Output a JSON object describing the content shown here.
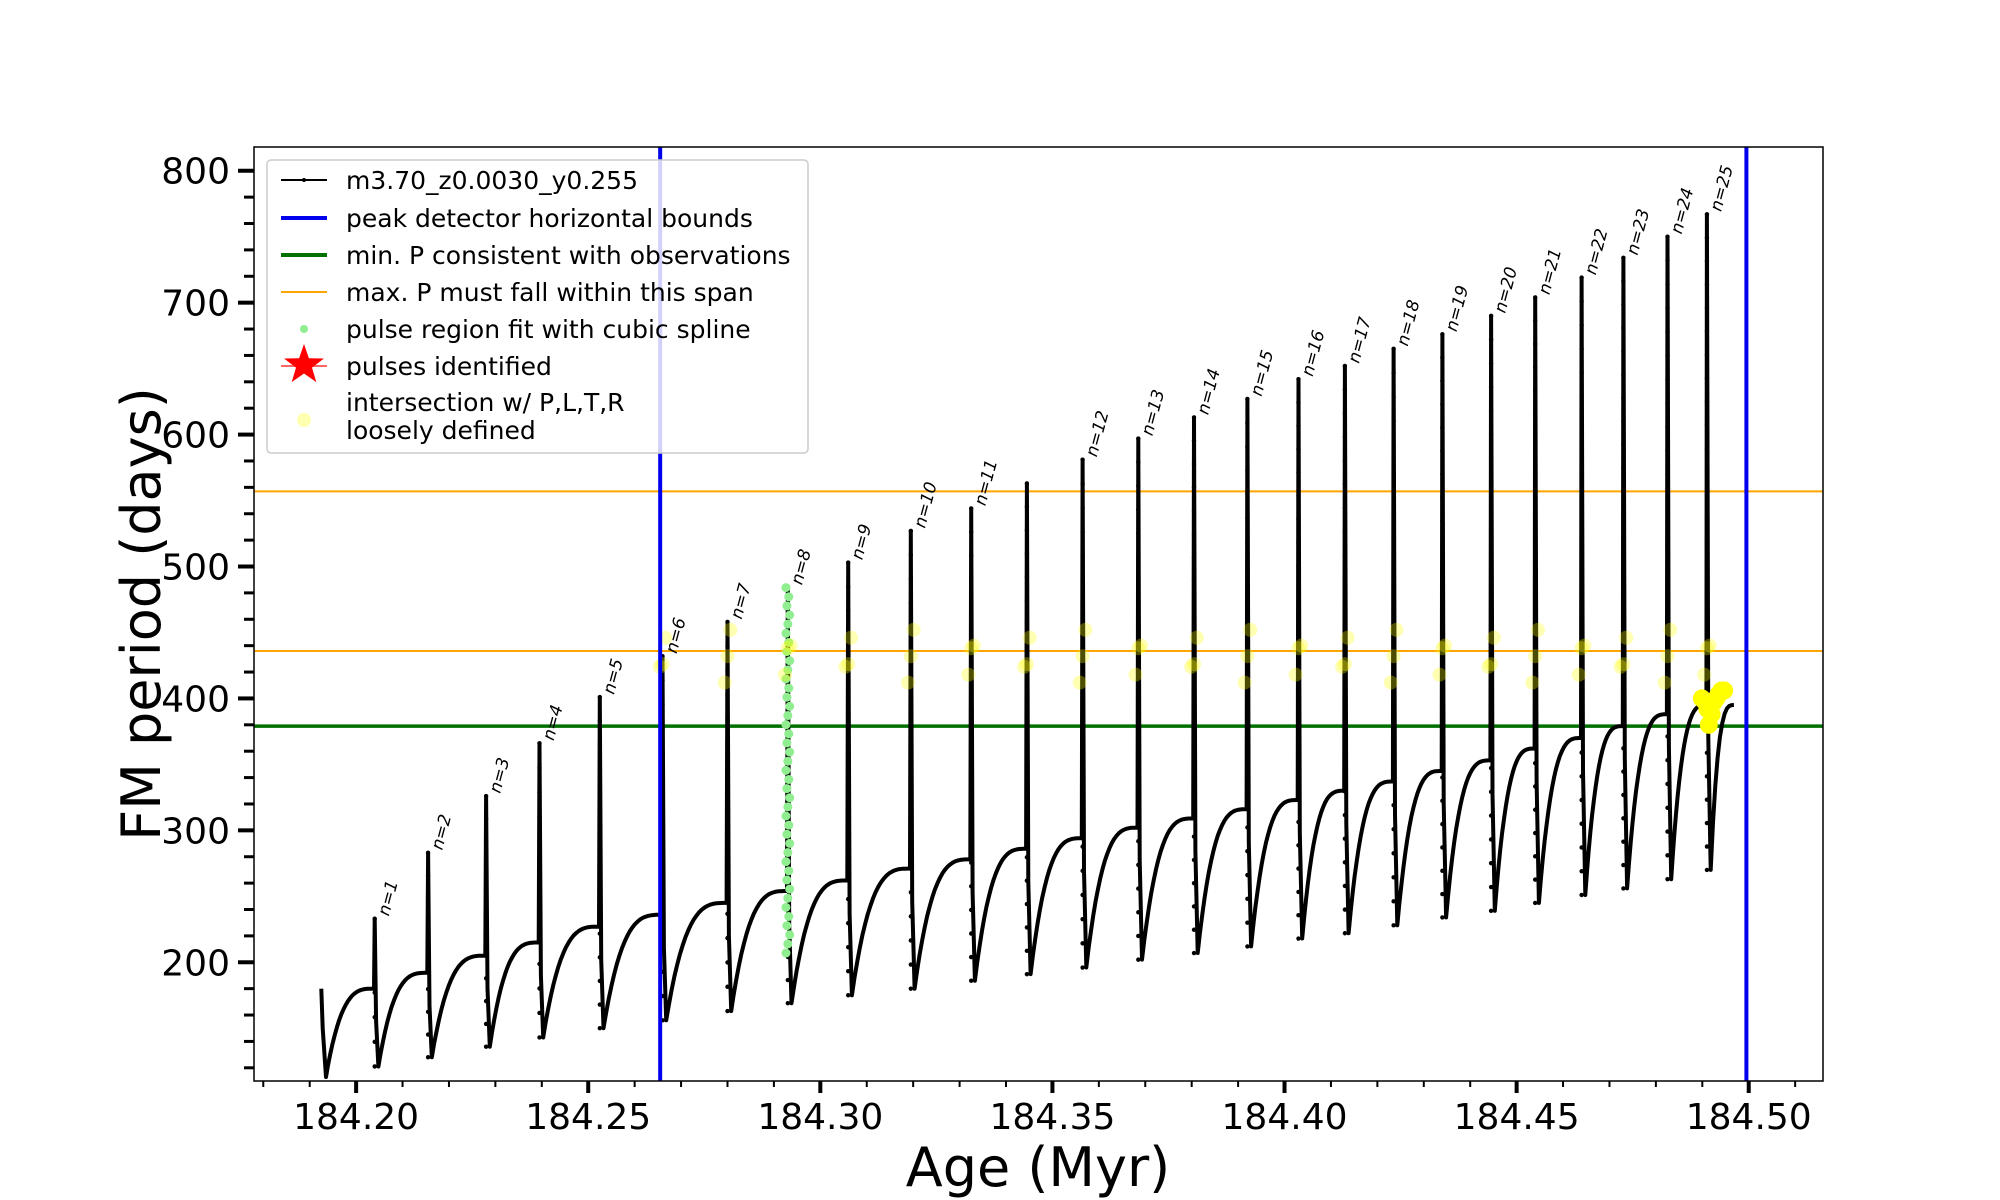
{
  "chart_data": {
    "type": "line",
    "xlabel": "Age (Myr)",
    "ylabel": "FM period (days)",
    "xlim": [
      184.178,
      184.516
    ],
    "ylim": [
      110,
      818
    ],
    "xticks": [
      {
        "value": 184.2,
        "label": "184.20"
      },
      {
        "value": 184.25,
        "label": "184.25"
      },
      {
        "value": 184.3,
        "label": "184.30"
      },
      {
        "value": 184.35,
        "label": "184.35"
      },
      {
        "value": 184.4,
        "label": "184.40"
      },
      {
        "value": 184.45,
        "label": "184.45"
      },
      {
        "value": 184.5,
        "label": "184.50"
      }
    ],
    "yticks": [
      {
        "value": 200,
        "label": "200"
      },
      {
        "value": 300,
        "label": "300"
      },
      {
        "value": 400,
        "label": "400"
      },
      {
        "value": 500,
        "label": "500"
      },
      {
        "value": 600,
        "label": "600"
      },
      {
        "value": 700,
        "label": "700"
      },
      {
        "value": 800,
        "label": "800"
      }
    ],
    "track": {
      "name": "m3.70_z0.0030_y0.255",
      "color": "#000000",
      "start": {
        "x": 184.1925,
        "y": 180
      },
      "initial_min": 113,
      "pulses": [
        {
          "x": 184.204,
          "peak": 233,
          "pre": 180,
          "min": 121,
          "label": "n=1"
        },
        {
          "x": 184.2155,
          "peak": 283,
          "pre": 192,
          "min": 128,
          "label": "n=2"
        },
        {
          "x": 184.228,
          "peak": 326,
          "pre": 205,
          "min": 136,
          "label": "n=3"
        },
        {
          "x": 184.2395,
          "peak": 366,
          "pre": 215,
          "min": 143,
          "label": "n=4"
        },
        {
          "x": 184.2525,
          "peak": 401,
          "pre": 227,
          "min": 150,
          "label": "n=5"
        },
        {
          "x": 184.266,
          "peak": 432,
          "pre": 236,
          "min": 156,
          "label": "n=6"
        },
        {
          "x": 184.28,
          "peak": 458,
          "pre": 245,
          "min": 163,
          "label": "n=7"
        },
        {
          "x": 184.293,
          "peak": 484,
          "pre": 254,
          "min": 169,
          "label": "n=8"
        },
        {
          "x": 184.306,
          "peak": 503,
          "pre": 262,
          "min": 175,
          "label": "n=9"
        },
        {
          "x": 184.3195,
          "peak": 527,
          "pre": 271,
          "min": 180,
          "label": "n=10"
        },
        {
          "x": 184.3325,
          "peak": 544,
          "pre": 278,
          "min": 186,
          "label": "n=11"
        },
        {
          "x": 184.3445,
          "peak": 563,
          "pre": 286,
          "min": 191,
          "label": ""
        },
        {
          "x": 184.3565,
          "peak": 581,
          "pre": 294,
          "min": 196,
          "label": "n=12"
        },
        {
          "x": 184.3685,
          "peak": 597,
          "pre": 302,
          "min": 202,
          "label": "n=13"
        },
        {
          "x": 184.3805,
          "peak": 613,
          "pre": 309,
          "min": 207,
          "label": "n=14"
        },
        {
          "x": 184.392,
          "peak": 627,
          "pre": 316,
          "min": 212,
          "label": "n=15"
        },
        {
          "x": 184.403,
          "peak": 642,
          "pre": 323,
          "min": 218,
          "label": "n=16"
        },
        {
          "x": 184.413,
          "peak": 652,
          "pre": 330,
          "min": 222,
          "label": "n=17"
        },
        {
          "x": 184.4235,
          "peak": 665,
          "pre": 337,
          "min": 228,
          "label": "n=18"
        },
        {
          "x": 184.434,
          "peak": 676,
          "pre": 345,
          "min": 234,
          "label": "n=19"
        },
        {
          "x": 184.4445,
          "peak": 690,
          "pre": 353,
          "min": 239,
          "label": "n=20"
        },
        {
          "x": 184.454,
          "peak": 704,
          "pre": 362,
          "min": 245,
          "label": "n=21"
        },
        {
          "x": 184.464,
          "peak": 719,
          "pre": 370,
          "min": 251,
          "label": "n=22"
        },
        {
          "x": 184.473,
          "peak": 734,
          "pre": 379,
          "min": 256,
          "label": "n=23"
        },
        {
          "x": 184.4825,
          "peak": 750,
          "pre": 388,
          "min": 263,
          "label": "n=24"
        },
        {
          "x": 184.491,
          "peak": 767,
          "pre": 395,
          "min": 270,
          "label": "n=25"
        }
      ],
      "end_value": 395
    },
    "vertical_bounds": {
      "name": "peak detector horizontal bounds",
      "color": "#0000ee",
      "x": [
        184.2655,
        184.4995
      ]
    },
    "min_period": {
      "name": "min. P consistent with observations",
      "color": "#007000",
      "y": 379
    },
    "max_span": {
      "name": "max. P must fall within this span",
      "color": "#ffa500",
      "y": [
        436,
        557
      ]
    },
    "spline_region": {
      "name": "pulse region fit with cubic spline",
      "color": "#90ee90",
      "pulse_index": 7
    },
    "pulses_identified": {
      "name": "pulses identified",
      "color": "#ff0000"
    },
    "intersections": {
      "name": "intersection w/ P,L,T,R\nloosely defined",
      "lines": [
        "intersection w/ P,L,T,R",
        "loosely defined"
      ],
      "color": "#ffff00",
      "y_values": [
        418,
        432,
        446
      ]
    }
  }
}
